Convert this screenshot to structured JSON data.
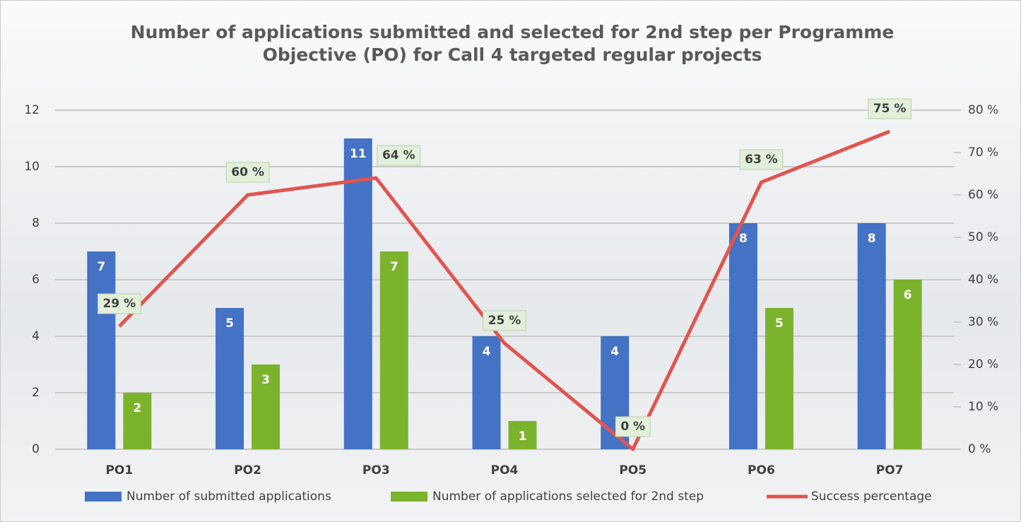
{
  "chart_data": {
    "type": "bar",
    "title": "Number of applications submitted and selected for 2nd step per Programme Objective (PO) for Call 4 targeted regular projects",
    "categories": [
      "PO1",
      "PO2",
      "PO3",
      "PO4",
      "PO5",
      "PO6",
      "PO7"
    ],
    "series": [
      {
        "name": "Number of submitted applications",
        "color": "#4472c4",
        "values": [
          7,
          5,
          11,
          4,
          4,
          8,
          8
        ]
      },
      {
        "name": "Number of applications selected for 2nd step",
        "color": "#7cb32c",
        "values": [
          2,
          3,
          7,
          1,
          0,
          5,
          6
        ]
      },
      {
        "name": "Success percentage",
        "color": "#e05550",
        "type": "line",
        "axis": "y2",
        "values": [
          29,
          60,
          64,
          25,
          0,
          63,
          75
        ],
        "value_labels": [
          "29 %",
          "60 %",
          "64 %",
          "25 %",
          "0 %",
          "63 %",
          "75 %"
        ]
      }
    ],
    "ylim": [
      0,
      12
    ],
    "yticks": [
      0,
      2,
      4,
      6,
      8,
      10,
      12
    ],
    "y2lim": [
      0,
      80
    ],
    "y2ticks": [
      {
        "value": 0,
        "label": "0 %"
      },
      {
        "value": 10,
        "label": "10 %"
      },
      {
        "value": 20,
        "label": "20 %"
      },
      {
        "value": 30,
        "label": "30 %"
      },
      {
        "value": 40,
        "label": "40 %"
      },
      {
        "value": 50,
        "label": "50 %"
      },
      {
        "value": 60,
        "label": "60 %"
      },
      {
        "value": 70,
        "label": "70 %"
      },
      {
        "value": 80,
        "label": "80 %"
      }
    ],
    "grid": true,
    "legend": "bottom"
  }
}
